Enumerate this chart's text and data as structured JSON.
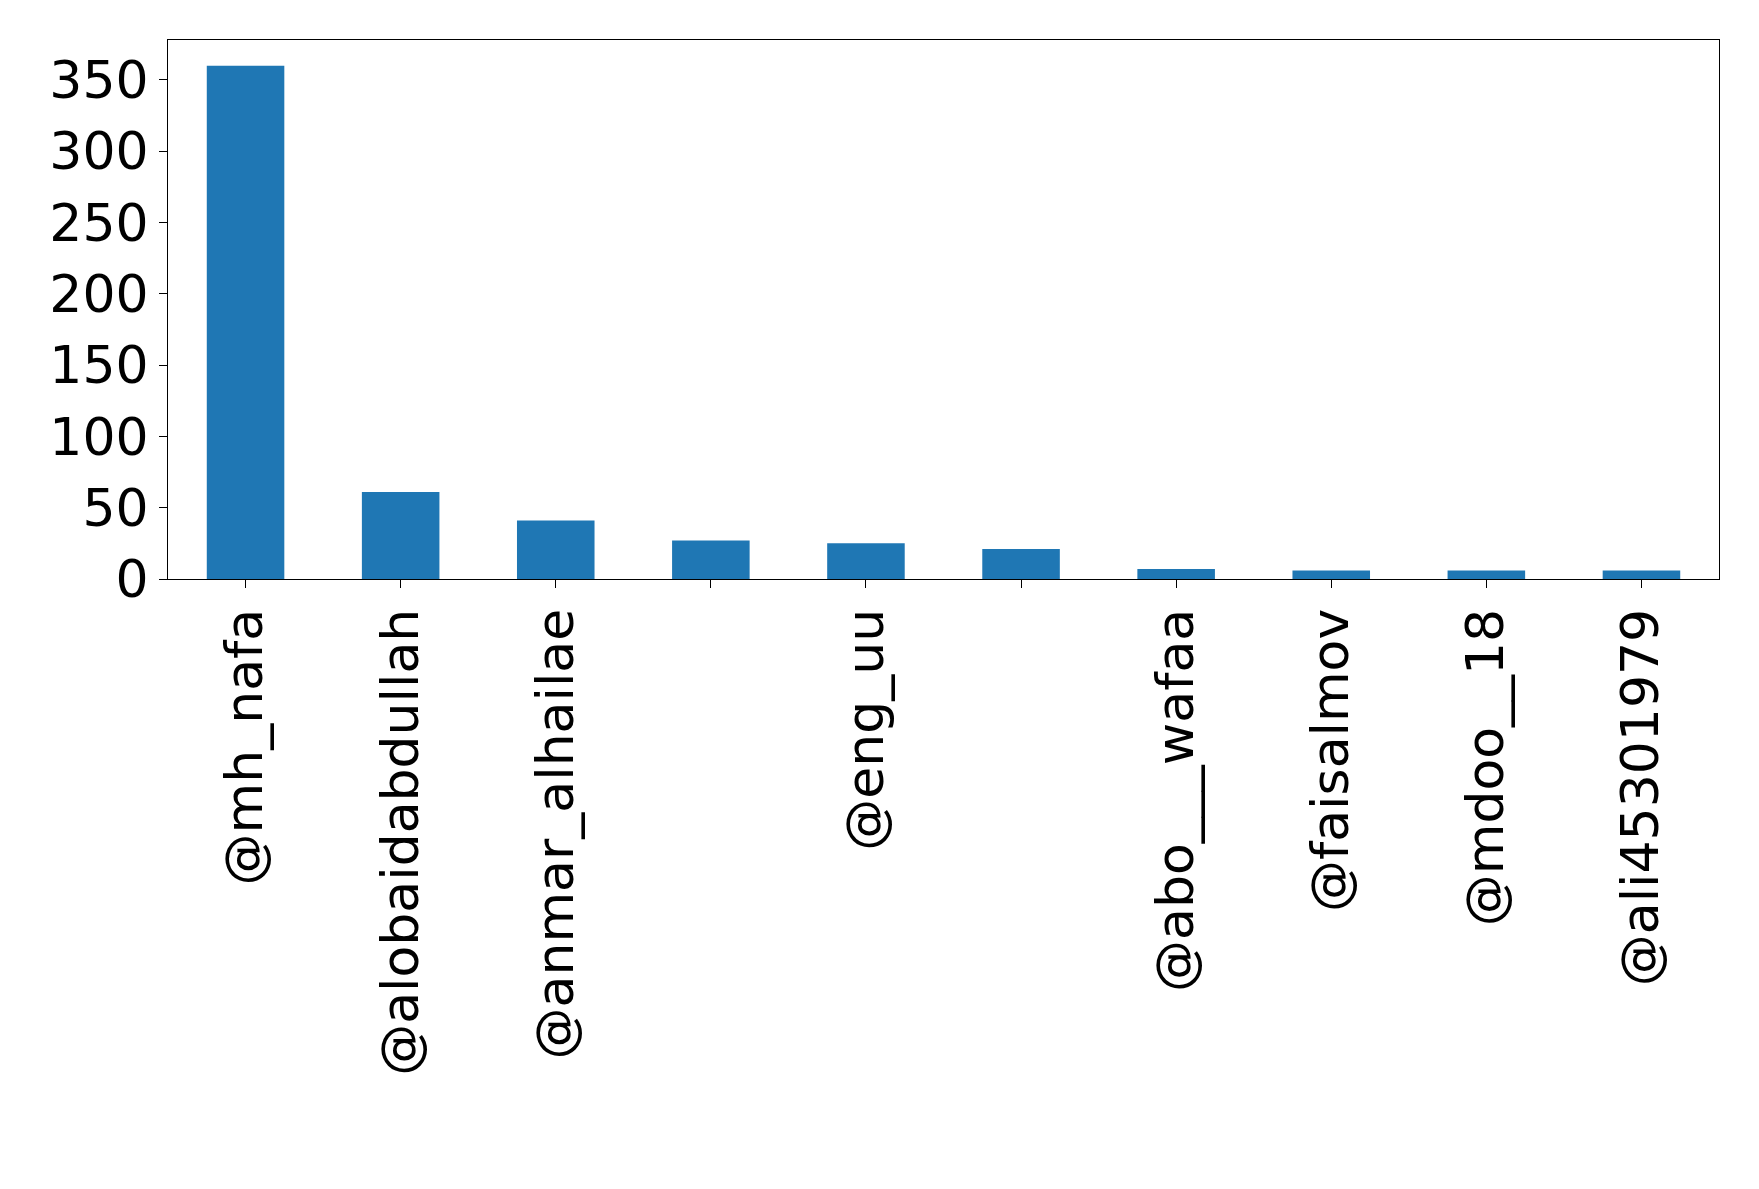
{
  "chart_data": {
    "type": "bar",
    "categories": [
      "@mh_nafa",
      "@alobaidabdullah",
      "@anmar_alhailae",
      null,
      "@eng_uu",
      null,
      "@abo___wafaa",
      "@faisalmov",
      "@mdoo__18",
      "@ali45301979"
    ],
    "values": [
      360,
      61,
      41,
      27,
      25,
      21,
      7,
      6,
      6,
      6
    ],
    "color": "#1f77b4",
    "ylim": [
      0,
      378
    ],
    "yticks": [
      0,
      50,
      100,
      150,
      200,
      250,
      300,
      350
    ]
  }
}
